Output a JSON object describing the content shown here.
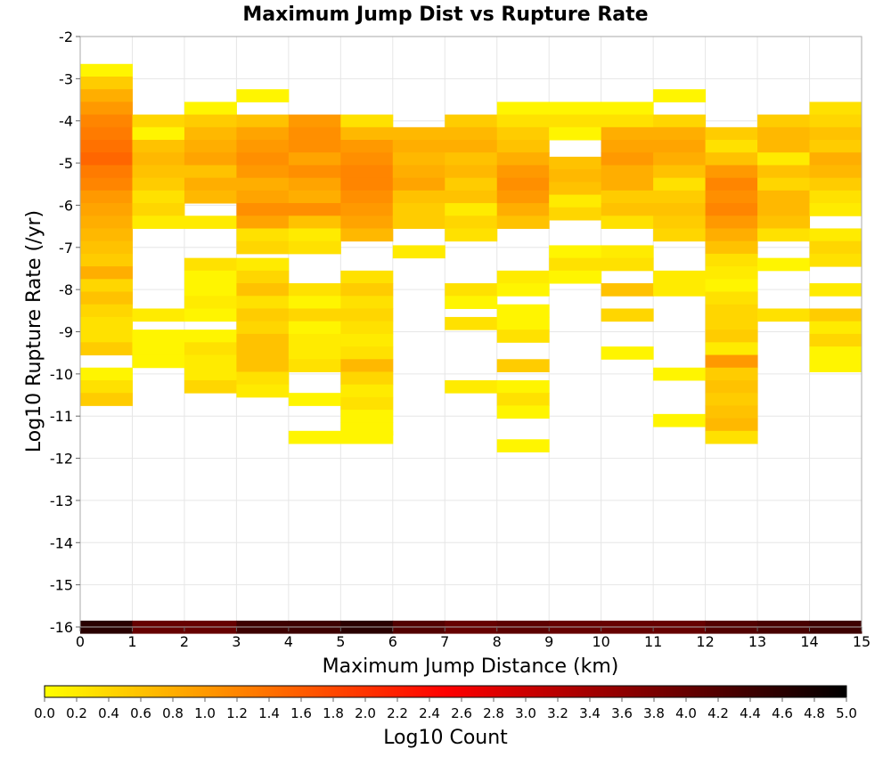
{
  "chart_data": {
    "type": "heatmap",
    "title": "Maximum Jump Dist vs Rupture Rate",
    "xlabel": "Maximum Jump Distance (km)",
    "ylabel": "Log10 Rupture Rate (/yr)",
    "xlim": [
      0,
      15
    ],
    "ylim": [
      -16,
      -2
    ],
    "x_ticks": [
      "0",
      "1",
      "2",
      "3",
      "4",
      "5",
      "6",
      "7",
      "8",
      "9",
      "10",
      "11",
      "12",
      "13",
      "14",
      "15"
    ],
    "y_ticks": [
      "-2",
      "-3",
      "-4",
      "-5",
      "-6",
      "-7",
      "-8",
      "-9",
      "-10",
      "-11",
      "-12",
      "-13",
      "-14",
      "-15",
      "-16"
    ],
    "x_bin_width": 1,
    "y_bin_height": 0.3,
    "grid": true,
    "colorbar": {
      "label": "Log10 Count",
      "range": [
        0,
        5
      ],
      "ticks": [
        "0.0",
        "0.2",
        "0.4",
        "0.6",
        "0.8",
        "1.0",
        "1.2",
        "1.4",
        "1.6",
        "1.8",
        "2.0",
        "2.2",
        "2.4",
        "2.6",
        "2.8",
        "3.0",
        "3.2",
        "3.4",
        "3.6",
        "3.8",
        "4.0",
        "4.2",
        "4.4",
        "4.6",
        "4.8",
        "5.0"
      ],
      "colors": [
        "#ffff00",
        "#ff8000",
        "#ff0000",
        "#800000",
        "#000000"
      ]
    },
    "columns": [
      {
        "x": 0,
        "cells": [
          [
            -2.8,
            0.1
          ],
          [
            -3.1,
            0.5
          ],
          [
            -3.4,
            0.8
          ],
          [
            -3.7,
            1.0
          ],
          [
            -4.0,
            1.2
          ],
          [
            -4.3,
            1.3
          ],
          [
            -4.6,
            1.4
          ],
          [
            -4.9,
            1.5
          ],
          [
            -5.2,
            1.3
          ],
          [
            -5.5,
            1.2
          ],
          [
            -5.8,
            1.0
          ],
          [
            -6.1,
            0.9
          ],
          [
            -6.4,
            0.8
          ],
          [
            -6.7,
            0.7
          ],
          [
            -7.0,
            0.6
          ],
          [
            -7.3,
            0.5
          ],
          [
            -7.6,
            0.8
          ],
          [
            -7.9,
            0.4
          ],
          [
            -8.2,
            0.6
          ],
          [
            -8.5,
            0.4
          ],
          [
            -8.8,
            0.3
          ],
          [
            -9.1,
            0.3
          ],
          [
            -9.4,
            0.5
          ],
          [
            -10.0,
            0.1
          ],
          [
            -10.3,
            0.3
          ],
          [
            -10.6,
            0.5
          ],
          [
            -16.0,
            4.6
          ]
        ]
      },
      {
        "x": 1,
        "cells": [
          [
            -4.0,
            0.4
          ],
          [
            -4.3,
            0.1
          ],
          [
            -4.6,
            0.6
          ],
          [
            -4.9,
            0.7
          ],
          [
            -5.2,
            0.6
          ],
          [
            -5.5,
            0.5
          ],
          [
            -5.8,
            0.3
          ],
          [
            -6.1,
            0.4
          ],
          [
            -6.4,
            0.2
          ],
          [
            -8.6,
            0.2
          ],
          [
            -9.1,
            0.1
          ],
          [
            -9.4,
            0.1
          ],
          [
            -9.7,
            0.1
          ],
          [
            -16.0,
            4.0
          ]
        ]
      },
      {
        "x": 2,
        "cells": [
          [
            -3.7,
            0.1
          ],
          [
            -4.0,
            0.5
          ],
          [
            -4.3,
            0.7
          ],
          [
            -4.6,
            0.8
          ],
          [
            -4.9,
            0.9
          ],
          [
            -5.2,
            0.6
          ],
          [
            -5.5,
            0.8
          ],
          [
            -5.8,
            0.7
          ],
          [
            -6.4,
            0.2
          ],
          [
            -7.4,
            0.3
          ],
          [
            -7.7,
            0.1
          ],
          [
            -8.0,
            0.1
          ],
          [
            -8.3,
            0.2
          ],
          [
            -8.6,
            0.1
          ],
          [
            -9.1,
            0.1
          ],
          [
            -9.4,
            0.3
          ],
          [
            -9.7,
            0.2
          ],
          [
            -10.0,
            0.2
          ],
          [
            -10.3,
            0.4
          ],
          [
            -16.0,
            4.0
          ]
        ]
      },
      {
        "x": 3,
        "cells": [
          [
            -3.4,
            0.1
          ],
          [
            -4.0,
            0.6
          ],
          [
            -4.3,
            0.9
          ],
          [
            -4.6,
            1.0
          ],
          [
            -4.9,
            1.1
          ],
          [
            -5.2,
            1.0
          ],
          [
            -5.5,
            0.8
          ],
          [
            -5.8,
            0.9
          ],
          [
            -6.1,
            1.1
          ],
          [
            -6.4,
            0.9
          ],
          [
            -6.7,
            0.3
          ],
          [
            -7.0,
            0.4
          ],
          [
            -7.4,
            0.2
          ],
          [
            -7.7,
            0.4
          ],
          [
            -8.0,
            0.6
          ],
          [
            -8.3,
            0.3
          ],
          [
            -8.6,
            0.5
          ],
          [
            -8.9,
            0.4
          ],
          [
            -9.2,
            0.6
          ],
          [
            -9.5,
            0.6
          ],
          [
            -9.8,
            0.6
          ],
          [
            -10.1,
            0.3
          ],
          [
            -10.4,
            0.2
          ],
          [
            -16.0,
            4.4
          ]
        ]
      },
      {
        "x": 4,
        "cells": [
          [
            -4.0,
            1.0
          ],
          [
            -4.3,
            1.1
          ],
          [
            -4.6,
            1.1
          ],
          [
            -4.9,
            0.9
          ],
          [
            -5.2,
            1.1
          ],
          [
            -5.5,
            0.9
          ],
          [
            -5.8,
            0.8
          ],
          [
            -6.1,
            1.1
          ],
          [
            -6.4,
            0.6
          ],
          [
            -6.7,
            0.2
          ],
          [
            -7.0,
            0.3
          ],
          [
            -8.0,
            0.3
          ],
          [
            -8.3,
            0.1
          ],
          [
            -8.6,
            0.4
          ],
          [
            -8.9,
            0.1
          ],
          [
            -9.2,
            0.2
          ],
          [
            -9.5,
            0.2
          ],
          [
            -9.8,
            0.3
          ],
          [
            -10.6,
            0.1
          ],
          [
            -11.5,
            0.1
          ],
          [
            -16.0,
            4.4
          ]
        ]
      },
      {
        "x": 5,
        "cells": [
          [
            -4.0,
            0.3
          ],
          [
            -4.3,
            0.7
          ],
          [
            -4.6,
            1.0
          ],
          [
            -4.9,
            1.1
          ],
          [
            -5.2,
            1.2
          ],
          [
            -5.5,
            1.2
          ],
          [
            -5.8,
            1.1
          ],
          [
            -6.1,
            1.0
          ],
          [
            -6.4,
            0.9
          ],
          [
            -6.7,
            0.7
          ],
          [
            -7.7,
            0.3
          ],
          [
            -8.0,
            0.5
          ],
          [
            -8.3,
            0.3
          ],
          [
            -8.6,
            0.4
          ],
          [
            -8.9,
            0.3
          ],
          [
            -9.2,
            0.2
          ],
          [
            -9.5,
            0.3
          ],
          [
            -9.8,
            0.7
          ],
          [
            -10.1,
            0.4
          ],
          [
            -10.4,
            0.2
          ],
          [
            -10.7,
            0.3
          ],
          [
            -11.0,
            0.1
          ],
          [
            -11.3,
            0.1
          ],
          [
            -11.5,
            0.1
          ],
          [
            -16.0,
            4.6
          ]
        ]
      },
      {
        "x": 6,
        "cells": [
          [
            -4.3,
            0.7
          ],
          [
            -4.6,
            0.8
          ],
          [
            -4.9,
            0.7
          ],
          [
            -5.2,
            0.8
          ],
          [
            -5.5,
            0.9
          ],
          [
            -5.8,
            0.6
          ],
          [
            -6.1,
            0.5
          ],
          [
            -6.4,
            0.5
          ],
          [
            -7.1,
            0.2
          ],
          [
            -16.0,
            4.2
          ]
        ]
      },
      {
        "x": 7,
        "cells": [
          [
            -4.0,
            0.5
          ],
          [
            -4.3,
            0.7
          ],
          [
            -4.6,
            0.8
          ],
          [
            -4.9,
            0.6
          ],
          [
            -5.2,
            0.7
          ],
          [
            -5.5,
            0.5
          ],
          [
            -5.8,
            0.6
          ],
          [
            -6.1,
            0.2
          ],
          [
            -6.4,
            0.4
          ],
          [
            -6.7,
            0.3
          ],
          [
            -8.0,
            0.3
          ],
          [
            -8.3,
            0.1
          ],
          [
            -8.8,
            0.3
          ],
          [
            -10.3,
            0.2
          ],
          [
            -16.0,
            4.0
          ]
        ]
      },
      {
        "x": 8,
        "cells": [
          [
            -3.7,
            0.1
          ],
          [
            -4.0,
            0.3
          ],
          [
            -4.3,
            0.5
          ],
          [
            -4.6,
            0.6
          ],
          [
            -4.9,
            0.8
          ],
          [
            -5.2,
            1.0
          ],
          [
            -5.5,
            1.1
          ],
          [
            -5.8,
            1.0
          ],
          [
            -6.1,
            0.8
          ],
          [
            -6.4,
            0.6
          ],
          [
            -7.7,
            0.2
          ],
          [
            -8.0,
            0.1
          ],
          [
            -8.5,
            0.1
          ],
          [
            -8.8,
            0.1
          ],
          [
            -9.1,
            0.3
          ],
          [
            -9.8,
            0.5
          ],
          [
            -10.3,
            0.1
          ],
          [
            -10.6,
            0.3
          ],
          [
            -10.9,
            0.1
          ],
          [
            -11.7,
            0.1
          ],
          [
            -16.0,
            4.1
          ]
        ]
      },
      {
        "x": 9,
        "cells": [
          [
            -3.7,
            0.1
          ],
          [
            -4.0,
            0.3
          ],
          [
            -4.3,
            0.1
          ],
          [
            -5.0,
            0.6
          ],
          [
            -5.3,
            0.7
          ],
          [
            -5.6,
            0.6
          ],
          [
            -5.9,
            0.2
          ],
          [
            -6.2,
            0.4
          ],
          [
            -7.1,
            0.1
          ],
          [
            -7.4,
            0.3
          ],
          [
            -7.7,
            0.1
          ],
          [
            -16.0,
            4.0
          ]
        ]
      },
      {
        "x": 10,
        "cells": [
          [
            -3.7,
            0.1
          ],
          [
            -4.0,
            0.3
          ],
          [
            -4.3,
            0.8
          ],
          [
            -4.6,
            0.9
          ],
          [
            -4.9,
            1.0
          ],
          [
            -5.2,
            0.8
          ],
          [
            -5.5,
            0.8
          ],
          [
            -5.8,
            0.5
          ],
          [
            -6.1,
            0.6
          ],
          [
            -6.4,
            0.3
          ],
          [
            -7.1,
            0.2
          ],
          [
            -7.4,
            0.3
          ],
          [
            -8.0,
            0.6
          ],
          [
            -8.6,
            0.4
          ],
          [
            -9.5,
            0.1
          ],
          [
            -16.0,
            4.0
          ]
        ]
      },
      {
        "x": 11,
        "cells": [
          [
            -3.4,
            0.1
          ],
          [
            -4.0,
            0.4
          ],
          [
            -4.3,
            0.8
          ],
          [
            -4.6,
            0.9
          ],
          [
            -4.9,
            0.8
          ],
          [
            -5.2,
            0.6
          ],
          [
            -5.5,
            0.3
          ],
          [
            -5.8,
            0.5
          ],
          [
            -6.1,
            0.6
          ],
          [
            -6.4,
            0.5
          ],
          [
            -6.7,
            0.4
          ],
          [
            -7.7,
            0.2
          ],
          [
            -8.0,
            0.2
          ],
          [
            -10.0,
            0.1
          ],
          [
            -11.1,
            0.1
          ],
          [
            -16.0,
            4.0
          ]
        ]
      },
      {
        "x": 12,
        "cells": [
          [
            -4.3,
            0.5
          ],
          [
            -4.6,
            0.3
          ],
          [
            -4.9,
            0.6
          ],
          [
            -5.2,
            1.0
          ],
          [
            -5.5,
            1.2
          ],
          [
            -5.8,
            1.1
          ],
          [
            -6.1,
            1.2
          ],
          [
            -6.4,
            1.0
          ],
          [
            -6.7,
            0.8
          ],
          [
            -7.0,
            0.6
          ],
          [
            -7.3,
            0.3
          ],
          [
            -7.6,
            0.2
          ],
          [
            -7.9,
            0.1
          ],
          [
            -8.2,
            0.3
          ],
          [
            -8.5,
            0.4
          ],
          [
            -8.8,
            0.4
          ],
          [
            -9.1,
            0.5
          ],
          [
            -9.4,
            0.2
          ],
          [
            -9.7,
            1.0
          ],
          [
            -10.0,
            0.5
          ],
          [
            -10.3,
            0.6
          ],
          [
            -10.6,
            0.5
          ],
          [
            -10.9,
            0.6
          ],
          [
            -11.2,
            0.7
          ],
          [
            -11.5,
            0.3
          ],
          [
            -16.0,
            4.2
          ]
        ]
      },
      {
        "x": 13,
        "cells": [
          [
            -4.0,
            0.5
          ],
          [
            -4.3,
            0.7
          ],
          [
            -4.6,
            0.7
          ],
          [
            -4.9,
            0.2
          ],
          [
            -5.2,
            0.6
          ],
          [
            -5.5,
            0.4
          ],
          [
            -5.8,
            0.7
          ],
          [
            -6.1,
            0.7
          ],
          [
            -6.4,
            0.6
          ],
          [
            -6.7,
            0.3
          ],
          [
            -7.4,
            0.1
          ],
          [
            -8.6,
            0.3
          ],
          [
            -16.0,
            4.3
          ]
        ]
      },
      {
        "x": 14,
        "cells": [
          [
            -3.7,
            0.3
          ],
          [
            -4.0,
            0.4
          ],
          [
            -4.3,
            0.6
          ],
          [
            -4.6,
            0.5
          ],
          [
            -4.9,
            0.8
          ],
          [
            -5.2,
            0.7
          ],
          [
            -5.5,
            0.5
          ],
          [
            -5.8,
            0.3
          ],
          [
            -6.1,
            0.2
          ],
          [
            -6.7,
            0.2
          ],
          [
            -7.0,
            0.4
          ],
          [
            -7.3,
            0.3
          ],
          [
            -8.0,
            0.2
          ],
          [
            -8.6,
            0.5
          ],
          [
            -8.9,
            0.2
          ],
          [
            -9.2,
            0.4
          ],
          [
            -9.5,
            0.1
          ],
          [
            -9.8,
            0.1
          ],
          [
            -16.0,
            4.4
          ]
        ]
      }
    ]
  }
}
